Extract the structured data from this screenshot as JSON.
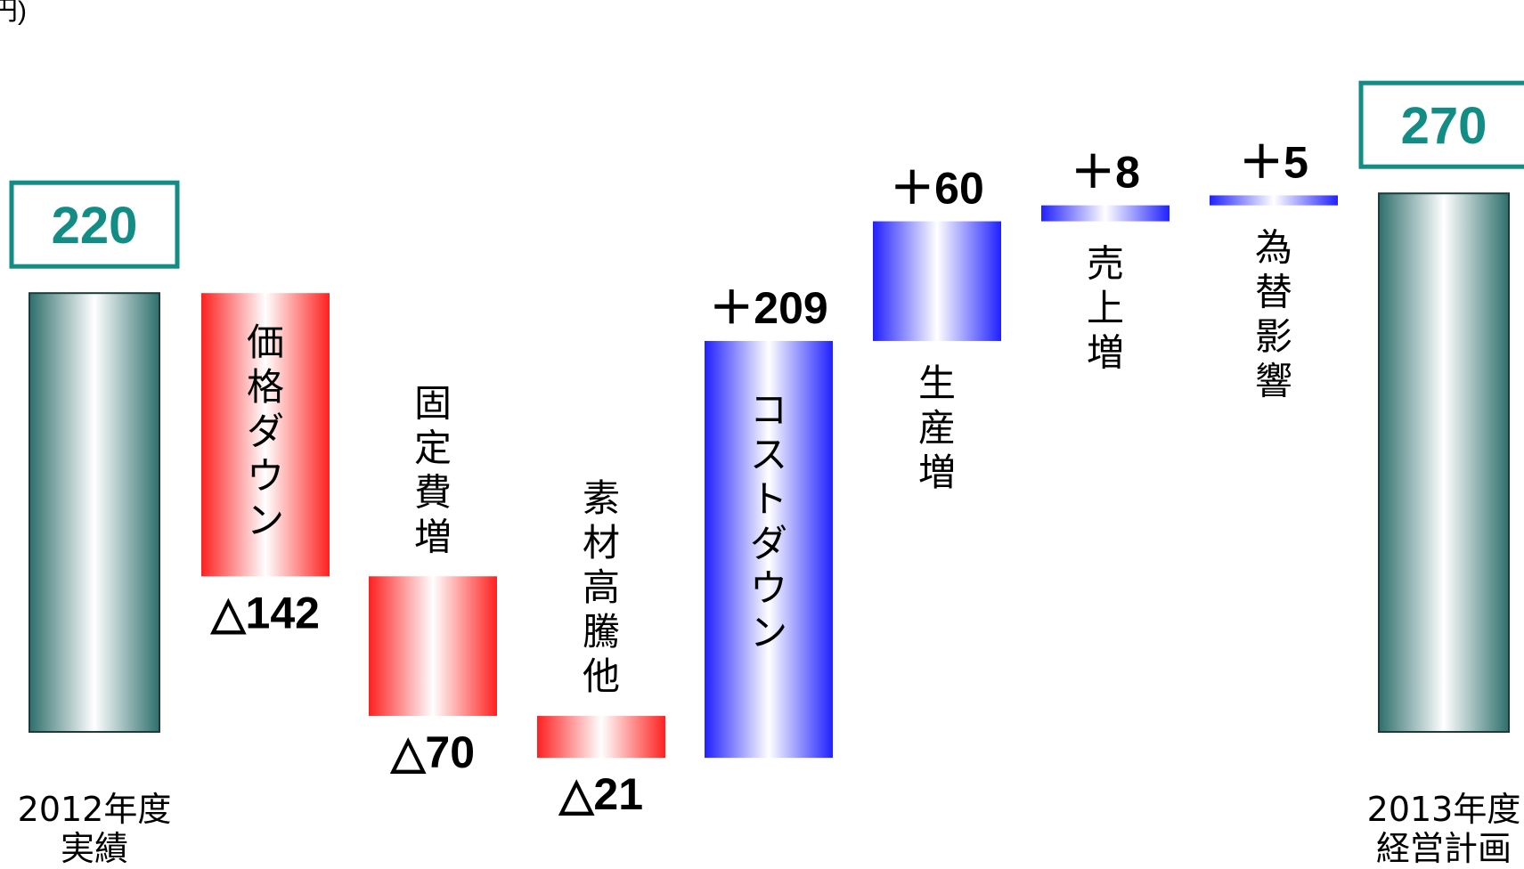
{
  "unit_fragment": "円)",
  "colors": {
    "total": "#2e6f6c",
    "total_box": "#138c86",
    "negative": "#ff2020",
    "positive": "#2020ff"
  },
  "chart_data": {
    "type": "waterfall",
    "items": [
      {
        "kind": "total",
        "value": 220,
        "value_label": "220",
        "category": "2012年度\n実績"
      },
      {
        "kind": "negative",
        "value": -142,
        "value_label": "△142",
        "text": "価格ダウン"
      },
      {
        "kind": "negative",
        "value": -70,
        "value_label": "△70",
        "text": "固定費増"
      },
      {
        "kind": "negative",
        "value": -21,
        "value_label": "△21",
        "text": "素材高騰他"
      },
      {
        "kind": "positive",
        "value": 209,
        "value_label": "＋209",
        "text": "コストダウン"
      },
      {
        "kind": "positive",
        "value": 60,
        "value_label": "＋60",
        "text": "生産増"
      },
      {
        "kind": "positive",
        "value": 8,
        "value_label": "＋8",
        "text": "売上増"
      },
      {
        "kind": "positive",
        "value": 5,
        "value_label": "＋5",
        "text": "為替影響"
      },
      {
        "kind": "total",
        "value": 270,
        "value_label": "270",
        "category": "2013年度\n経営計画"
      }
    ]
  }
}
